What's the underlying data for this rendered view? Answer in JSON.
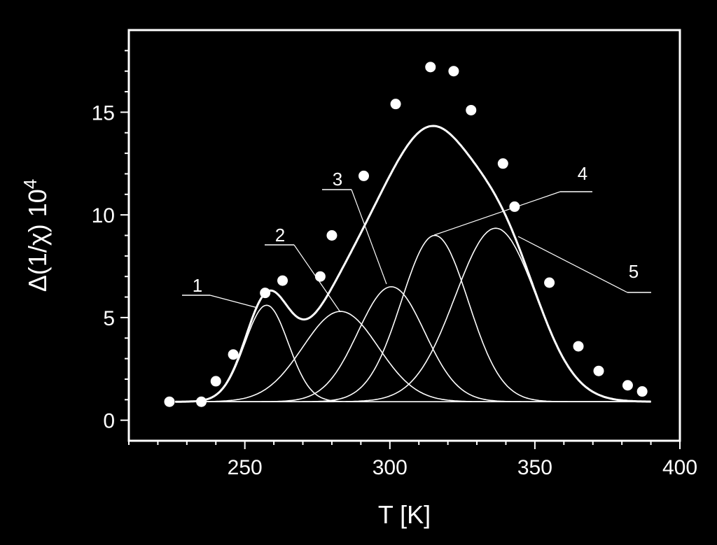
{
  "chart_data": {
    "type": "scatter",
    "title": "",
    "xlabel": "T [K]",
    "ylabel": "Δ(1/χ) 10",
    "ylabel_exponent": "4",
    "xlim": [
      210,
      400
    ],
    "ylim": [
      -1,
      19
    ],
    "x_ticks": [
      250,
      300,
      350,
      400
    ],
    "y_ticks": [
      0,
      5,
      10,
      15
    ],
    "baseline": 0.9,
    "data_points": {
      "x": [
        224,
        235,
        240,
        246,
        257,
        263,
        276,
        280,
        291,
        302,
        314,
        322,
        328,
        339,
        343,
        355,
        365,
        372,
        382,
        387
      ],
      "y": [
        0.9,
        0.9,
        1.9,
        3.2,
        6.2,
        6.8,
        7.0,
        9.0,
        11.9,
        15.4,
        17.2,
        17.0,
        15.1,
        12.5,
        10.4,
        6.7,
        3.6,
        2.4,
        1.7,
        1.4
      ]
    },
    "components": [
      {
        "label": "1",
        "center": 257.5,
        "height": 4.7,
        "width": 7.5
      },
      {
        "label": "2",
        "center": 283.0,
        "height": 4.4,
        "width": 13.0
      },
      {
        "label": "3",
        "center": 300.5,
        "height": 5.6,
        "width": 11.5
      },
      {
        "label": "4",
        "center": 315.5,
        "height": 8.1,
        "width": 11.5
      },
      {
        "label": "5",
        "center": 336.5,
        "height": 8.45,
        "width": 14.0
      }
    ],
    "grid": false,
    "legend": "none"
  }
}
